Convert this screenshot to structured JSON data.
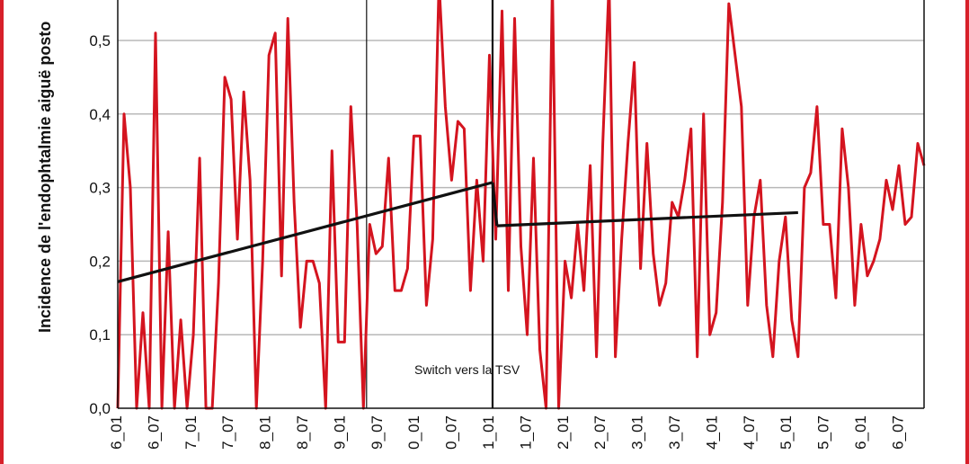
{
  "colors": {
    "frame": "#d7202a",
    "series_incidence": "#d4141f",
    "series_trend": "#111111",
    "grid": "#b8b8b8"
  },
  "chart_data": {
    "type": "line",
    "ylabel": "Incidence de l'endophtalmie aiguë posto",
    "ylim": [
      0,
      0.55
    ],
    "yticks": [
      "0,0",
      "0,1",
      "0,2",
      "0,3",
      "0,4",
      "0,5"
    ],
    "xtick_labels": [
      "6_01",
      "6_07",
      "7_01",
      "7_07",
      "8_01",
      "8_07",
      "9_01",
      "9_07",
      "0_01",
      "0_07",
      "1_01",
      "1_07",
      "2_01",
      "2_07",
      "3_01",
      "3_07",
      "4_01",
      "4_07",
      "5_01",
      "5_07",
      "6_01",
      "6_07"
    ],
    "grid": true,
    "annotations": [
      {
        "text": "Switch vers la TSV"
      }
    ],
    "series": [
      {
        "values": [
          0,
          0.4,
          0.3,
          0,
          0.13,
          0,
          0.51,
          0,
          0.24,
          0,
          0.12,
          0,
          0.1,
          0.34,
          0,
          0,
          0.17,
          0.45,
          0.42,
          0.23,
          0.43,
          0.31,
          0,
          0.2,
          0.48,
          0.51,
          0.18,
          0.53,
          0.28,
          0.11,
          0.2,
          0.2,
          0.17,
          0,
          0.35,
          0.09,
          0.09,
          0.41,
          0.25,
          0,
          0.25,
          0.21,
          0.22,
          0.34,
          0.16,
          0.16,
          0.19,
          0.37,
          0.37,
          0.14,
          0.23,
          0.58,
          0.41,
          0.31,
          0.39,
          0.38,
          0.16,
          0.31,
          0.2,
          0.48,
          0.23,
          0.54,
          0.16,
          0.53,
          0.22,
          0.1,
          0.34,
          0.08,
          0,
          0.58,
          0,
          0.2,
          0.15,
          0.25,
          0.16,
          0.33,
          0.07,
          0.36,
          0.58,
          0.07,
          0.23,
          0.36,
          0.47,
          0.19,
          0.36,
          0.21,
          0.14,
          0.17,
          0.28,
          0.26,
          0.31,
          0.38,
          0.07,
          0.4,
          0.1,
          0.13,
          0.28,
          0.55,
          0.48,
          0.41,
          0.14,
          0.26,
          0.31,
          0.14,
          0.07,
          0.2,
          0.26,
          0.12,
          0.07,
          0.3,
          0.32,
          0.41,
          0.25,
          0.25,
          0.15,
          0.38,
          0.3,
          0.14,
          0.25,
          0.18,
          0.2,
          0.23,
          0.31,
          0.27,
          0.33,
          0.25,
          0.26,
          0.36,
          0.33
        ]
      },
      {
        "segments": [
          {
            "x_start": 0,
            "x_end": 59.5,
            "y_start": 0.172,
            "y_end": 0.307
          },
          {
            "x_start": 59.5,
            "x_end": 60.2,
            "y_start": 0.307,
            "y_end": 0.248
          },
          {
            "x_start": 60.2,
            "x_end": 108,
            "y_start": 0.248,
            "y_end": 0.266
          }
        ]
      }
    ],
    "vertical_markers": [
      39.5,
      59.5
    ]
  }
}
